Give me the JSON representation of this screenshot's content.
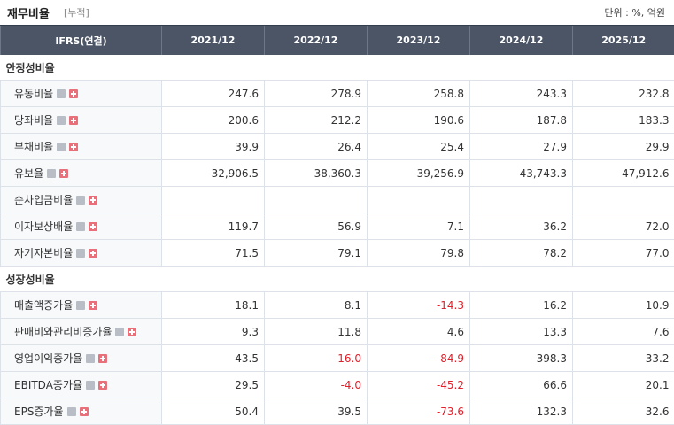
{
  "header": {
    "title": "재무비율",
    "tag": "[누적]",
    "unit": "단위 : %, 억원"
  },
  "table": {
    "corner": "IFRS(연결)",
    "columns": [
      "2021/12",
      "2022/12",
      "2023/12",
      "2024/12",
      "2025/12"
    ],
    "sections": [
      {
        "title": "안정성비율",
        "rows": [
          {
            "label": "유동비율",
            "values": [
              "247.6",
              "278.9",
              "258.8",
              "243.3",
              "232.8"
            ]
          },
          {
            "label": "당좌비율",
            "values": [
              "200.6",
              "212.2",
              "190.6",
              "187.8",
              "183.3"
            ]
          },
          {
            "label": "부채비율",
            "values": [
              "39.9",
              "26.4",
              "25.4",
              "27.9",
              "29.9"
            ]
          },
          {
            "label": "유보율",
            "values": [
              "32,906.5",
              "38,360.3",
              "39,256.9",
              "43,743.3",
              "47,912.6"
            ]
          },
          {
            "label": "순차입금비율",
            "values": [
              null,
              null,
              null,
              null,
              null
            ]
          },
          {
            "label": "이자보상배율",
            "values": [
              "119.7",
              "56.9",
              "7.1",
              "36.2",
              "72.0"
            ]
          },
          {
            "label": "자기자본비율",
            "values": [
              "71.5",
              "79.1",
              "79.8",
              "78.2",
              "77.0"
            ]
          }
        ]
      },
      {
        "title": "성장성비율",
        "rows": [
          {
            "label": "매출액증가율",
            "values": [
              "18.1",
              "8.1",
              "-14.3",
              "16.2",
              "10.9"
            ]
          },
          {
            "label": "판매비와관리비증가율",
            "values": [
              "9.3",
              "11.8",
              "4.6",
              "13.3",
              "7.6"
            ]
          },
          {
            "label": "영업이익증가율",
            "values": [
              "43.5",
              "-16.0",
              "-84.9",
              "398.3",
              "33.2"
            ]
          },
          {
            "label": "EBITDA증가율",
            "values": [
              "29.5",
              "-4.0",
              "-45.2",
              "66.6",
              "20.1"
            ]
          },
          {
            "label": "EPS증가율",
            "values": [
              "50.4",
              "39.5",
              "-73.6",
              "132.3",
              "32.6"
            ]
          }
        ]
      }
    ]
  }
}
